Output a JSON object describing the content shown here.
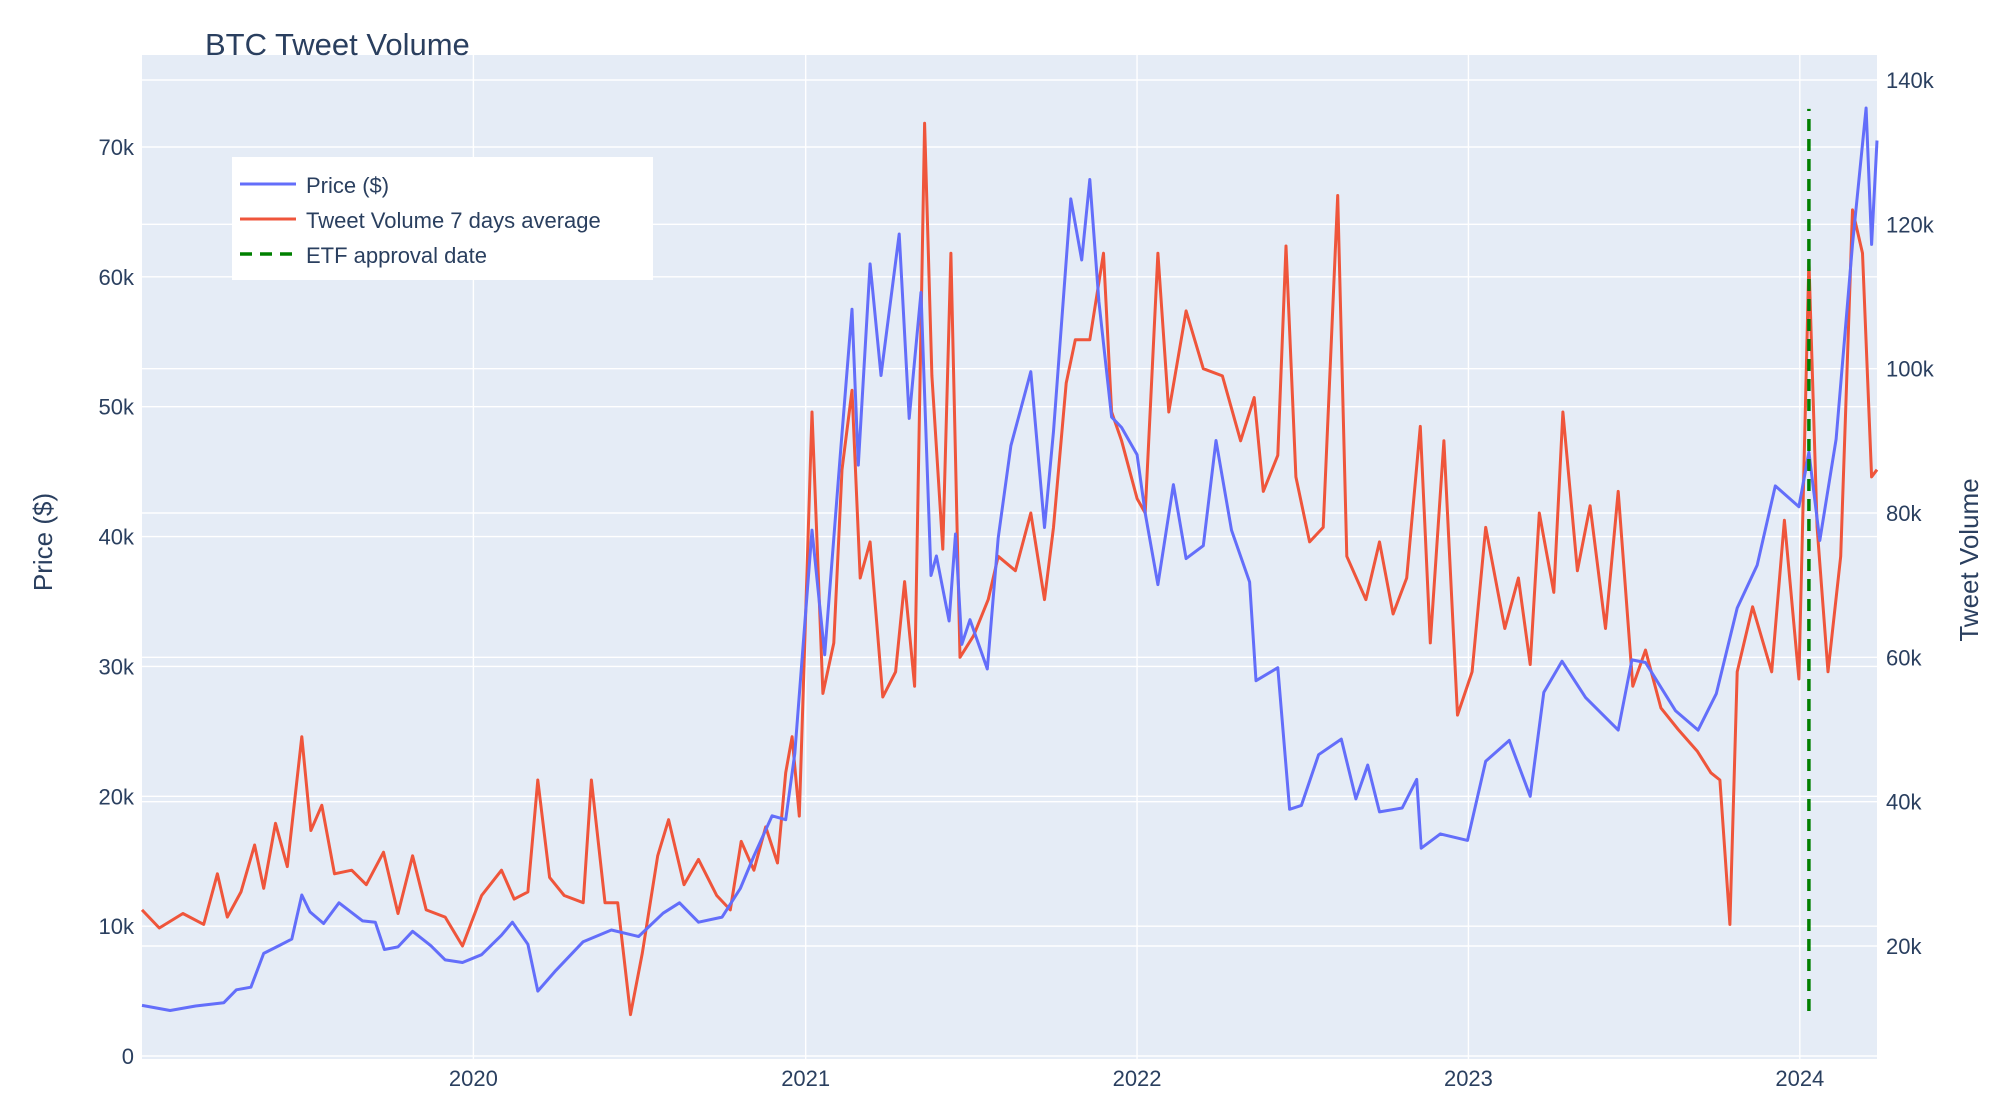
{
  "chart_data": {
    "type": "line",
    "title": "BTC Tweet Volume",
    "xlabel": "",
    "ylabel": "Price ($)",
    "y2label": "Tweet Volume",
    "x_range": [
      "2019-01-01",
      "2024-03-26"
    ],
    "ylim": [
      0,
      76000
    ],
    "y2lim": [
      5000,
      140000
    ],
    "x_ticks": [
      {
        "date": "2020-01-01",
        "label": "2020"
      },
      {
        "date": "2021-01-01",
        "label": "2021"
      },
      {
        "date": "2022-01-01",
        "label": "2022"
      },
      {
        "date": "2023-01-01",
        "label": "2023"
      },
      {
        "date": "2024-01-01",
        "label": "2024"
      }
    ],
    "y_ticks": [
      {
        "value": 0,
        "label": "0"
      },
      {
        "value": 10000,
        "label": "10k"
      },
      {
        "value": 20000,
        "label": "20k"
      },
      {
        "value": 30000,
        "label": "30k"
      },
      {
        "value": 40000,
        "label": "40k"
      },
      {
        "value": 50000,
        "label": "50k"
      },
      {
        "value": 60000,
        "label": "60k"
      },
      {
        "value": 70000,
        "label": "70k"
      }
    ],
    "y2_ticks": [
      {
        "value": 20000,
        "label": "20k"
      },
      {
        "value": 40000,
        "label": "40k"
      },
      {
        "value": 60000,
        "label": "60k"
      },
      {
        "value": 80000,
        "label": "80k"
      },
      {
        "value": 100000,
        "label": "100k"
      },
      {
        "value": 120000,
        "label": "120k"
      },
      {
        "value": 140000,
        "label": "140k"
      }
    ],
    "grid": true,
    "legend_position": "top-left",
    "colors": {
      "plot_bg": "#e5ecf6",
      "grid": "#ffffff",
      "text": "#2a3f5f",
      "price": "#636efa",
      "tweets": "#ef553b",
      "etf": "#008000"
    },
    "series": [
      {
        "name": "Price ($)",
        "axis": "y",
        "points": [
          [
            "2019-01-01",
            3900
          ],
          [
            "2019-02-01",
            3500
          ],
          [
            "2019-03-01",
            3850
          ],
          [
            "2019-04-01",
            4100
          ],
          [
            "2019-04-15",
            5100
          ],
          [
            "2019-05-01",
            5300
          ],
          [
            "2019-05-15",
            7900
          ],
          [
            "2019-06-01",
            8500
          ],
          [
            "2019-06-15",
            9000
          ],
          [
            "2019-06-26",
            12400
          ],
          [
            "2019-07-05",
            11100
          ],
          [
            "2019-07-20",
            10200
          ],
          [
            "2019-08-06",
            11800
          ],
          [
            "2019-09-01",
            10400
          ],
          [
            "2019-09-15",
            10300
          ],
          [
            "2019-09-25",
            8200
          ],
          [
            "2019-10-10",
            8400
          ],
          [
            "2019-10-26",
            9600
          ],
          [
            "2019-11-15",
            8500
          ],
          [
            "2019-12-01",
            7400
          ],
          [
            "2019-12-20",
            7200
          ],
          [
            "2020-01-10",
            7800
          ],
          [
            "2020-02-01",
            9300
          ],
          [
            "2020-02-13",
            10300
          ],
          [
            "2020-03-01",
            8600
          ],
          [
            "2020-03-12",
            5000
          ],
          [
            "2020-04-01",
            6600
          ],
          [
            "2020-05-01",
            8800
          ],
          [
            "2020-06-01",
            9700
          ],
          [
            "2020-07-01",
            9200
          ],
          [
            "2020-07-28",
            11000
          ],
          [
            "2020-08-15",
            11800
          ],
          [
            "2020-09-05",
            10300
          ],
          [
            "2020-10-01",
            10700
          ],
          [
            "2020-10-21",
            12900
          ],
          [
            "2020-11-05",
            15400
          ],
          [
            "2020-11-25",
            18500
          ],
          [
            "2020-12-10",
            18200
          ],
          [
            "2020-12-20",
            23300
          ],
          [
            "2021-01-08",
            40500
          ],
          [
            "2021-01-22",
            30900
          ],
          [
            "2021-02-08",
            46200
          ],
          [
            "2021-02-21",
            57500
          ],
          [
            "2021-02-28",
            45500
          ],
          [
            "2021-03-13",
            61000
          ],
          [
            "2021-03-25",
            52400
          ],
          [
            "2021-04-14",
            63300
          ],
          [
            "2021-04-25",
            49100
          ],
          [
            "2021-05-08",
            58800
          ],
          [
            "2021-05-19",
            37000
          ],
          [
            "2021-05-25",
            38500
          ],
          [
            "2021-06-08",
            33500
          ],
          [
            "2021-06-15",
            40200
          ],
          [
            "2021-06-22",
            31700
          ],
          [
            "2021-07-01",
            33600
          ],
          [
            "2021-07-20",
            29800
          ],
          [
            "2021-08-01",
            39900
          ],
          [
            "2021-08-15",
            47000
          ],
          [
            "2021-09-06",
            52700
          ],
          [
            "2021-09-21",
            40700
          ],
          [
            "2021-10-01",
            48100
          ],
          [
            "2021-10-20",
            66000
          ],
          [
            "2021-11-01",
            61300
          ],
          [
            "2021-11-10",
            67500
          ],
          [
            "2021-11-20",
            58100
          ],
          [
            "2021-12-04",
            49200
          ],
          [
            "2021-12-15",
            48400
          ],
          [
            "2022-01-01",
            46300
          ],
          [
            "2022-01-10",
            41800
          ],
          [
            "2022-01-24",
            36300
          ],
          [
            "2022-02-10",
            44000
          ],
          [
            "2022-02-24",
            38300
          ],
          [
            "2022-03-15",
            39300
          ],
          [
            "2022-03-29",
            47400
          ],
          [
            "2022-04-15",
            40500
          ],
          [
            "2022-05-05",
            36500
          ],
          [
            "2022-05-12",
            28900
          ],
          [
            "2022-06-05",
            29900
          ],
          [
            "2022-06-18",
            19000
          ],
          [
            "2022-07-01",
            19300
          ],
          [
            "2022-07-20",
            23200
          ],
          [
            "2022-08-14",
            24400
          ],
          [
            "2022-08-30",
            19800
          ],
          [
            "2022-09-12",
            22400
          ],
          [
            "2022-09-25",
            18800
          ],
          [
            "2022-10-20",
            19100
          ],
          [
            "2022-11-05",
            21300
          ],
          [
            "2022-11-10",
            16000
          ],
          [
            "2022-12-01",
            17100
          ],
          [
            "2022-12-31",
            16600
          ],
          [
            "2023-01-20",
            22700
          ],
          [
            "2023-02-15",
            24300
          ],
          [
            "2023-03-10",
            20000
          ],
          [
            "2023-03-25",
            28000
          ],
          [
            "2023-04-14",
            30400
          ],
          [
            "2023-05-10",
            27600
          ],
          [
            "2023-06-15",
            25100
          ],
          [
            "2023-06-30",
            30500
          ],
          [
            "2023-07-15",
            30300
          ],
          [
            "2023-08-17",
            26600
          ],
          [
            "2023-09-11",
            25100
          ],
          [
            "2023-10-01",
            27900
          ],
          [
            "2023-10-24",
            34500
          ],
          [
            "2023-11-15",
            37800
          ],
          [
            "2023-12-05",
            43900
          ],
          [
            "2023-12-31",
            42300
          ],
          [
            "2024-01-11",
            46500
          ],
          [
            "2024-01-23",
            39700
          ],
          [
            "2024-02-10",
            47500
          ],
          [
            "2024-02-28",
            62500
          ],
          [
            "2024-03-14",
            73000
          ],
          [
            "2024-03-20",
            62500
          ],
          [
            "2024-03-26",
            70500
          ]
        ]
      },
      {
        "name": "Tweet Volume 7 days average",
        "axis": "y2",
        "points": [
          [
            "2019-01-01",
            25000
          ],
          [
            "2019-01-20",
            22500
          ],
          [
            "2019-02-15",
            24500
          ],
          [
            "2019-03-10",
            23000
          ],
          [
            "2019-03-25",
            30000
          ],
          [
            "2019-04-05",
            24000
          ],
          [
            "2019-04-20",
            27500
          ],
          [
            "2019-05-05",
            34000
          ],
          [
            "2019-05-15",
            28000
          ],
          [
            "2019-05-28",
            37000
          ],
          [
            "2019-06-10",
            31000
          ],
          [
            "2019-06-26",
            49000
          ],
          [
            "2019-07-06",
            36000
          ],
          [
            "2019-07-18",
            39500
          ],
          [
            "2019-08-01",
            30000
          ],
          [
            "2019-08-20",
            30500
          ],
          [
            "2019-09-05",
            28500
          ],
          [
            "2019-09-24",
            33000
          ],
          [
            "2019-10-10",
            24500
          ],
          [
            "2019-10-26",
            32500
          ],
          [
            "2019-11-10",
            25000
          ],
          [
            "2019-12-01",
            24000
          ],
          [
            "2019-12-20",
            20000
          ],
          [
            "2020-01-10",
            27000
          ],
          [
            "2020-02-01",
            30500
          ],
          [
            "2020-02-15",
            26500
          ],
          [
            "2020-03-01",
            27500
          ],
          [
            "2020-03-12",
            43000
          ],
          [
            "2020-03-25",
            29500
          ],
          [
            "2020-04-10",
            27000
          ],
          [
            "2020-05-01",
            26000
          ],
          [
            "2020-05-10",
            43000
          ],
          [
            "2020-05-25",
            26000
          ],
          [
            "2020-06-08",
            26000
          ],
          [
            "2020-06-22",
            10500
          ],
          [
            "2020-07-05",
            19000
          ],
          [
            "2020-07-22",
            32500
          ],
          [
            "2020-08-03",
            37500
          ],
          [
            "2020-08-20",
            28500
          ],
          [
            "2020-09-05",
            32000
          ],
          [
            "2020-09-25",
            27000
          ],
          [
            "2020-10-10",
            25000
          ],
          [
            "2020-10-22",
            34500
          ],
          [
            "2020-11-05",
            30500
          ],
          [
            "2020-11-18",
            36500
          ],
          [
            "2020-12-01",
            31500
          ],
          [
            "2020-12-10",
            44000
          ],
          [
            "2020-12-17",
            49000
          ],
          [
            "2020-12-25",
            38000
          ],
          [
            "2021-01-08",
            94000
          ],
          [
            "2021-01-20",
            55000
          ],
          [
            "2021-02-01",
            62000
          ],
          [
            "2021-02-10",
            86000
          ],
          [
            "2021-02-21",
            97000
          ],
          [
            "2021-03-02",
            71000
          ],
          [
            "2021-03-13",
            76000
          ],
          [
            "2021-03-27",
            54500
          ],
          [
            "2021-04-10",
            58000
          ],
          [
            "2021-04-20",
            70500
          ],
          [
            "2021-05-01",
            56000
          ],
          [
            "2021-05-12",
            134000
          ],
          [
            "2021-05-20",
            99000
          ],
          [
            "2021-06-01",
            75000
          ],
          [
            "2021-06-10",
            116000
          ],
          [
            "2021-06-20",
            60000
          ],
          [
            "2021-07-05",
            63000
          ],
          [
            "2021-07-21",
            68000
          ],
          [
            "2021-08-01",
            74000
          ],
          [
            "2021-08-20",
            72000
          ],
          [
            "2021-09-06",
            80000
          ],
          [
            "2021-09-21",
            68000
          ],
          [
            "2021-10-01",
            78000
          ],
          [
            "2021-10-15",
            98000
          ],
          [
            "2021-10-25",
            104000
          ],
          [
            "2021-11-10",
            104000
          ],
          [
            "2021-11-25",
            116000
          ],
          [
            "2021-12-04",
            94000
          ],
          [
            "2021-12-15",
            90000
          ],
          [
            "2022-01-01",
            82000
          ],
          [
            "2022-01-10",
            80000
          ],
          [
            "2022-01-24",
            116000
          ],
          [
            "2022-02-05",
            94000
          ],
          [
            "2022-02-24",
            108000
          ],
          [
            "2022-03-15",
            100000
          ],
          [
            "2022-04-05",
            99000
          ],
          [
            "2022-04-25",
            90000
          ],
          [
            "2022-05-10",
            96000
          ],
          [
            "2022-05-20",
            83000
          ],
          [
            "2022-06-05",
            88000
          ],
          [
            "2022-06-14",
            117000
          ],
          [
            "2022-06-25",
            85000
          ],
          [
            "2022-07-10",
            76000
          ],
          [
            "2022-07-25",
            78000
          ],
          [
            "2022-08-10",
            124000
          ],
          [
            "2022-08-20",
            74000
          ],
          [
            "2022-09-10",
            68000
          ],
          [
            "2022-09-25",
            76000
          ],
          [
            "2022-10-10",
            66000
          ],
          [
            "2022-10-25",
            71000
          ],
          [
            "2022-11-09",
            92000
          ],
          [
            "2022-11-20",
            62000
          ],
          [
            "2022-12-05",
            90000
          ],
          [
            "2022-12-20",
            52000
          ],
          [
            "2023-01-05",
            58000
          ],
          [
            "2023-01-20",
            78000
          ],
          [
            "2023-02-10",
            64000
          ],
          [
            "2023-02-25",
            71000
          ],
          [
            "2023-03-10",
            59000
          ],
          [
            "2023-03-20",
            80000
          ],
          [
            "2023-04-05",
            69000
          ],
          [
            "2023-04-15",
            94000
          ],
          [
            "2023-05-01",
            72000
          ],
          [
            "2023-05-15",
            81000
          ],
          [
            "2023-06-01",
            64000
          ],
          [
            "2023-06-15",
            83000
          ],
          [
            "2023-07-01",
            56000
          ],
          [
            "2023-07-15",
            61000
          ],
          [
            "2023-08-01",
            53000
          ],
          [
            "2023-08-20",
            50000
          ],
          [
            "2023-09-10",
            47000
          ],
          [
            "2023-09-25",
            44000
          ],
          [
            "2023-10-05",
            43000
          ],
          [
            "2023-10-16",
            23000
          ],
          [
            "2023-10-24",
            58000
          ],
          [
            "2023-11-10",
            67000
          ],
          [
            "2023-12-01",
            58000
          ],
          [
            "2023-12-15",
            79000
          ],
          [
            "2023-12-31",
            57000
          ],
          [
            "2024-01-11",
            115000
          ],
          [
            "2024-01-20",
            78000
          ],
          [
            "2024-02-01",
            58000
          ],
          [
            "2024-02-15",
            74000
          ],
          [
            "2024-02-28",
            122000
          ],
          [
            "2024-03-10",
            116000
          ],
          [
            "2024-03-20",
            85000
          ],
          [
            "2024-03-26",
            86000
          ]
        ]
      }
    ],
    "reference_lines": [
      {
        "name": "ETF approval date",
        "axis": "y2",
        "x": "2024-01-11",
        "y_start": 11000,
        "y_end": 136000,
        "style": "dashed"
      }
    ]
  }
}
